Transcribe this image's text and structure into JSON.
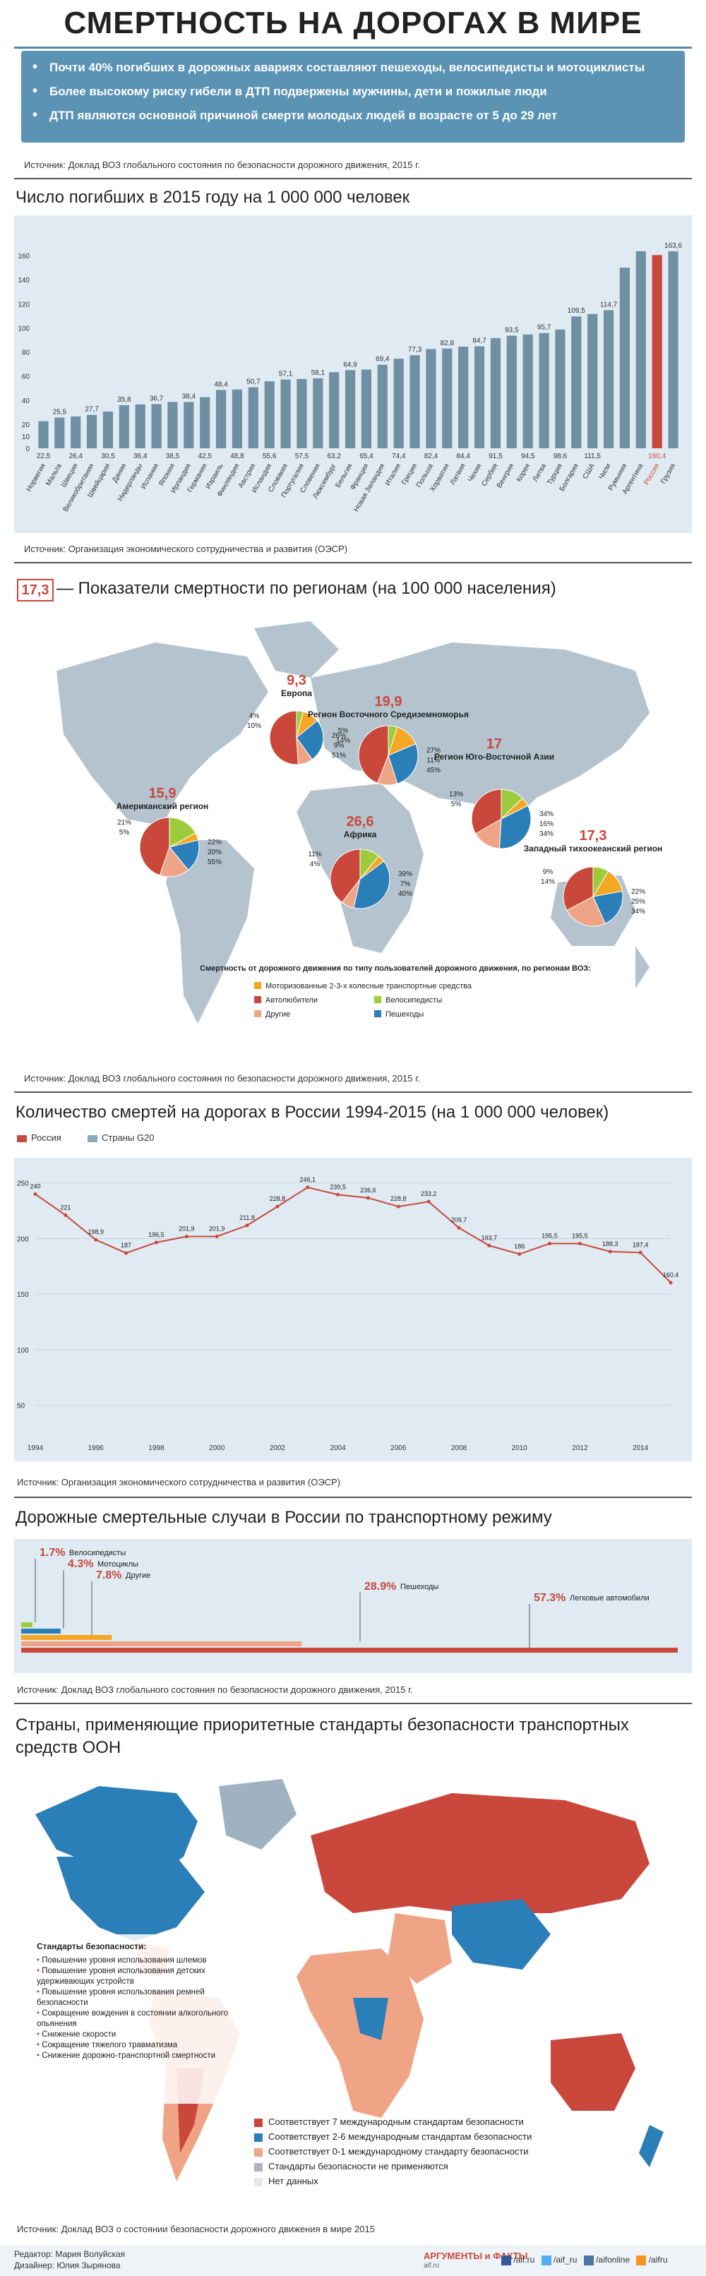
{
  "header": {
    "title": "СМЕРТНОСТЬ НА ДОРОГАХ В МИРЕ",
    "bullets": [
      "Почти 40% погибших в дорожных авариях составляют пешеходы, велосипедисты и мотоциклисты",
      "Более высокому риску гибели в ДТП подвержены мужчины, дети и пожилые люди",
      "ДТП являются основной причиной смерти молодых людей в возрасте от 5 до 29 лет"
    ],
    "source": "Источник: Доклад ВОЗ глобального состояния по безопасности дорожного движения, 2015 г."
  },
  "section1": {
    "title": "Число погибших в 2015 году на 1 000 000 человек",
    "source": "Источник: Организация экономического сотрудничества и развития (ОЭСР)"
  },
  "section2": {
    "badge": "17,3",
    "title": "— Показатели смертности по регионам (на 100 000 населения)",
    "source": "Источник: Доклад ВОЗ глобального состояния по безопасности дорожного движения, 2015 г.",
    "legend_title": "Смертность от дорожного движения по типу пользователей дорожного движения, по регионам ВОЗ:",
    "legend": [
      {
        "label": "Моторизованные 2-3-х колесные транспортные средства",
        "color": "#f5a623"
      },
      {
        "label": "Автолюбители",
        "color": "#c9483b"
      },
      {
        "label": "Велосипедисты",
        "color": "#9ccc3c"
      },
      {
        "label": "Другие",
        "color": "#f0a486"
      },
      {
        "label": "Пешеходы",
        "color": "#2a7fb8"
      }
    ]
  },
  "section3": {
    "title": "Количество смертей на дорогах в России 1994-2015 (на 1 000 000 человек)",
    "legend_russia": "Россия",
    "legend_g20": "Страны G20",
    "source": "Источник: Организация экономического сотрудничества и развития (ОЭСР)"
  },
  "section4": {
    "title": "Дорожные смертельные случаи в России по транспортному режиму",
    "source": "Источник: Доклад ВОЗ глобального состояния по безопасности дорожного движения, 2015 г.",
    "modes": [
      {
        "pct": "1.7%",
        "label": "Велосипедисты",
        "value": 1.7,
        "color": "#9ccc3c"
      },
      {
        "pct": "4.3%",
        "label": "Мотоциклы",
        "value": 4.3,
        "color": "#2a7fb8"
      },
      {
        "pct": "7.8%",
        "label": "Другие",
        "value": 7.8,
        "color": "#f5a623"
      },
      {
        "pct": "28.9%",
        "label": "Пешеходы",
        "value": 28.9,
        "color": "#f0a486"
      },
      {
        "pct": "57.3%",
        "label": "Легковые автомобили",
        "value": 57.3,
        "color": "#c9483b"
      }
    ]
  },
  "section5": {
    "title": "Страны, применяющие приоритетные стандарты безопасности транспортных средств ООН",
    "standards_title": "Стандарты безопасности:",
    "standards": [
      "Повышение уровня использования шлемов",
      "Повышение уровня использования детских удерживающих устройств",
      "Повышение уровня использования ремней безопасности",
      "Сокращение вождения в состоянии алкогольного опьянения",
      "Снижение скорости",
      "Сокращение тяжелого травматизма",
      "Снижение дорожно-транспортной смертности"
    ],
    "legend": [
      {
        "label": "Соответствует 7 международным стандартам безопасности",
        "color": "#c9483b"
      },
      {
        "label": "Соответствует 2-6 международным стандартам безопасности",
        "color": "#2a7fb8"
      },
      {
        "label": "Соответствует 0-1 международному стандарту безопасности",
        "color": "#f0a486"
      },
      {
        "label": "Стандарты безопасности не применяются",
        "color": "#aab5bd"
      },
      {
        "label": "Нет данных",
        "color": "#e3e8ec"
      }
    ],
    "source": "Источник: Доклад ВОЗ о состоянии безопасности дорожного движения в мире 2015"
  },
  "footer": {
    "editor": "Редактор: Мария Волуйская",
    "designer": "Дизайнер: Юлия Зырянова",
    "brand": "АРГУМЕНТЫ и ФАКТЫ",
    "brand_sub": "aif.ru",
    "socials": [
      "/aif.ru",
      "/aif_ru",
      "/aifonline",
      "/aifru"
    ]
  },
  "chart_data": [
    {
      "type": "bar",
      "title": "Число погибших в 2015 году на 1 000 000 человек",
      "ylim": [
        0,
        170
      ],
      "yticks": [
        0,
        10,
        20,
        40,
        60,
        80,
        100,
        120,
        140,
        160
      ],
      "categories": [
        "Норвегия",
        "Мальта",
        "Швеция",
        "Великобритания",
        "Швейцария",
        "Дания",
        "Нидерланды",
        "Испания",
        "Япония",
        "Ирландия",
        "Германия",
        "Израиль",
        "Финляндия",
        "Австрия",
        "Исландия",
        "Словакия",
        "Португалия",
        "Словения",
        "Люксембург",
        "Бельгия",
        "Франция",
        "Новая Зеландия",
        "Италия",
        "Греция",
        "Польша",
        "Хорватия",
        "Латвия",
        "Чехия",
        "Сербия",
        "Венгрия",
        "Корея",
        "Литва",
        "Турция",
        "Болгария",
        "США",
        "Чили",
        "Румыния",
        "Аргентина",
        "Россия",
        "Грузия"
      ],
      "values": [
        22.5,
        25.5,
        26.4,
        27.7,
        30.5,
        35.8,
        36.4,
        36.7,
        38.5,
        38.4,
        42.5,
        48.4,
        48.8,
        50.7,
        55.6,
        57.1,
        57.5,
        58.1,
        63.2,
        64.9,
        65.4,
        69.4,
        74.4,
        77.3,
        82.4,
        82.8,
        84.4,
        84.7,
        91.5,
        93.5,
        94.5,
        95.7,
        98.6,
        109.5,
        111.5,
        114.7,
        150.0,
        163.6,
        160.4,
        163.6
      ],
      "labels_top": [
        "",
        "25,5",
        "",
        "27,7",
        "",
        "35,8",
        "",
        "36,7",
        "",
        "38,4",
        "",
        "48,4",
        "",
        "50,7",
        "",
        "57,1",
        "",
        "58,1",
        "",
        "64,9",
        "",
        "69,4",
        "",
        "77,3",
        "",
        "82,8",
        "",
        "84,7",
        "",
        "93,5",
        "",
        "95,7",
        "",
        "109,5",
        "",
        "114,7",
        "",
        "",
        "",
        "163,6"
      ],
      "labels_bottom": [
        "22,5",
        "",
        "26,4",
        "",
        "30,5",
        "",
        "36,4",
        "",
        "38,5",
        "",
        "42,5",
        "",
        "48,8",
        "",
        "55,6",
        "",
        "57,5",
        "",
        "63,2",
        "",
        "65,4",
        "",
        "74,4",
        "",
        "82,4",
        "",
        "84,4",
        "",
        "91,5",
        "",
        "94,5",
        "",
        "98,6",
        "",
        "111,5",
        "",
        "",
        "",
        "160,4",
        ""
      ],
      "highlight": "Россия"
    },
    {
      "type": "pie",
      "title": "Смертность от дорожного движения по типу пользователей дорожного движения, по регионам ВОЗ",
      "regions": [
        {
          "name": "Европа",
          "rate": "9,3",
          "slices": [
            {
              "label": "4%",
              "value": 4
            },
            {
              "label": "10%",
              "value": 10
            },
            {
              "label": "26%",
              "value": 26
            },
            {
              "label": "9%",
              "value": 9
            },
            {
              "label": "51%",
              "value": 51
            }
          ]
        },
        {
          "name": "Регион Восточного Средиземноморья",
          "rate": "19,9",
          "slices": [
            {
              "label": "5%",
              "value": 5
            },
            {
              "label": "14%",
              "value": 14
            },
            {
              "label": "27%",
              "value": 27
            },
            {
              "label": "11%",
              "value": 11
            },
            {
              "label": "45%",
              "value": 45
            }
          ]
        },
        {
          "name": "Американский регион",
          "rate": "15,9",
          "slices": [
            {
              "label": "21%",
              "value": 21
            },
            {
              "label": "5%",
              "value": 5
            },
            {
              "label": "22%",
              "value": 22
            },
            {
              "label": "20%",
              "value": 20
            },
            {
              "label": "55%",
              "value": 55
            }
          ]
        },
        {
          "name": "Регион Юго-Восточной Азии",
          "rate": "17",
          "slices": [
            {
              "label": "13%",
              "value": 13
            },
            {
              "label": "5%",
              "value": 5
            },
            {
              "label": "34%",
              "value": 34
            },
            {
              "label": "16%",
              "value": 16
            },
            {
              "label": "34%",
              "value": 34
            }
          ]
        },
        {
          "name": "Африка",
          "rate": "26,6",
          "slices": [
            {
              "label": "11%",
              "value": 11
            },
            {
              "label": "4%",
              "value": 4
            },
            {
              "label": "39%",
              "value": 39
            },
            {
              "label": "7%",
              "value": 7
            },
            {
              "label": "40%",
              "value": 40
            }
          ]
        },
        {
          "name": "Западный тихоокеанский регион",
          "rate": "17,3",
          "slices": [
            {
              "label": "9%",
              "value": 9
            },
            {
              "label": "14%",
              "value": 14
            },
            {
              "label": "22%",
              "value": 22
            },
            {
              "label": "25%",
              "value": 25
            },
            {
              "label": "34%",
              "value": 34
            }
          ]
        }
      ]
    },
    {
      "type": "line",
      "title": "Количество смертей на дорогах в России 1994-2015 (на 1 000 000 человек)",
      "x": [
        1994,
        1995,
        1996,
        1997,
        1998,
        1999,
        2000,
        2001,
        2002,
        2003,
        2004,
        2005,
        2006,
        2007,
        2008,
        2009,
        2010,
        2011,
        2012,
        2013,
        2014,
        2015
      ],
      "xticks": [
        1994,
        1996,
        1998,
        2000,
        2002,
        2004,
        2006,
        2008,
        2010,
        2012,
        2014
      ],
      "yticks": [
        50,
        100,
        150,
        200,
        250
      ],
      "ylim": [
        25,
        260
      ],
      "series": [
        {
          "name": "Россия",
          "values": [
            240,
            221,
            198.9,
            187,
            196.5,
            201.9,
            201.9,
            211.8,
            228.8,
            246.1,
            239.5,
            236.6,
            228.8,
            233.2,
            209.7,
            193.7,
            186,
            195.5,
            195.5,
            188.3,
            187.4,
            160.4
          ],
          "labels": [
            "240",
            "221",
            "198,9",
            "187",
            "196,5",
            "201,9",
            "201,9",
            "211,8",
            "228,8",
            "246,1",
            "239,5",
            "236,6",
            "228,8",
            "233,2",
            "209,7",
            "193,7",
            "186",
            "195,5",
            "195,5",
            "188,3",
            "187,4",
            "160,4"
          ]
        }
      ]
    }
  ]
}
